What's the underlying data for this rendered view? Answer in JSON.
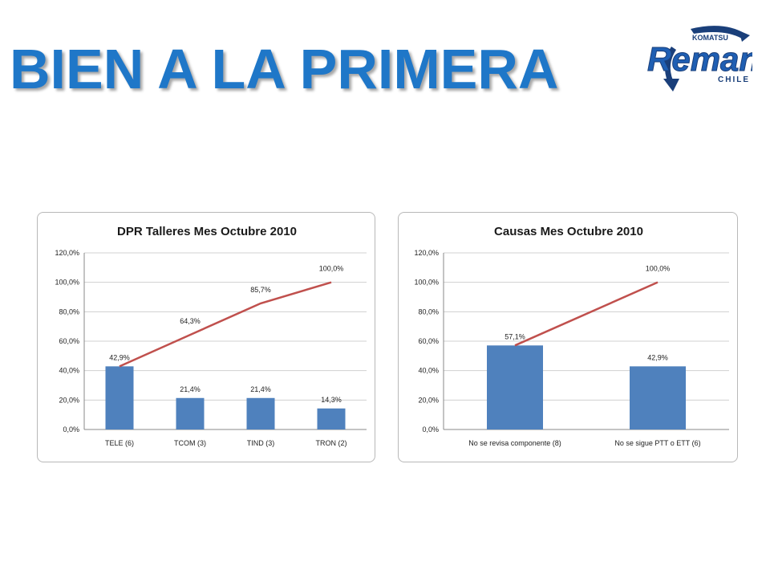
{
  "header": {
    "title": "BIEN A LA PRIMERA"
  },
  "logo": {
    "brand": "Reman",
    "top": "KOMATSU",
    "sub": "CHILE",
    "colors": {
      "primary": "#1f5fb3",
      "accent": "#1a3f7a"
    }
  },
  "colors": {
    "title": "#1f77c8",
    "bar": "#4f81bd",
    "line": "#c0504d",
    "grid": "#d0d0d0"
  },
  "chart_data": [
    {
      "type": "bar",
      "title": "DPR Talleres Mes Octubre 2010",
      "categories": [
        "TELE (6)",
        "TCOM (3)",
        "TIND (3)",
        "TRON (2)"
      ],
      "series": [
        {
          "type": "bar",
          "values": [
            42.9,
            21.4,
            21.4,
            14.3
          ],
          "labels": [
            "42,9%",
            "21,4%",
            "21,4%",
            "14,3%"
          ]
        },
        {
          "type": "line",
          "values": [
            42.9,
            64.3,
            85.7,
            100.0
          ],
          "labels": [
            "",
            "64,3%",
            "85,7%",
            "100,0%"
          ]
        }
      ],
      "ylim": [
        0,
        120
      ],
      "yticks": [
        "0,0%",
        "20,0%",
        "40,0%",
        "60,0%",
        "80,0%",
        "100,0%",
        "120,0%"
      ],
      "grid": true,
      "legend": "none"
    },
    {
      "type": "bar",
      "title": "Causas Mes Octubre 2010",
      "categories": [
        "No se revisa componente (8)",
        "No se sigue PTT o ETT (6)"
      ],
      "series": [
        {
          "type": "bar",
          "values": [
            57.1,
            42.9
          ],
          "labels": [
            "57,1%",
            "42,9%"
          ]
        },
        {
          "type": "line",
          "values": [
            57.1,
            100.0
          ],
          "labels": [
            "",
            "100,0%"
          ]
        }
      ],
      "ylim": [
        0,
        120
      ],
      "yticks": [
        "0,0%",
        "20,0%",
        "40,0%",
        "60,0%",
        "80,0%",
        "100,0%",
        "120,0%"
      ],
      "grid": true,
      "legend": "none"
    }
  ]
}
